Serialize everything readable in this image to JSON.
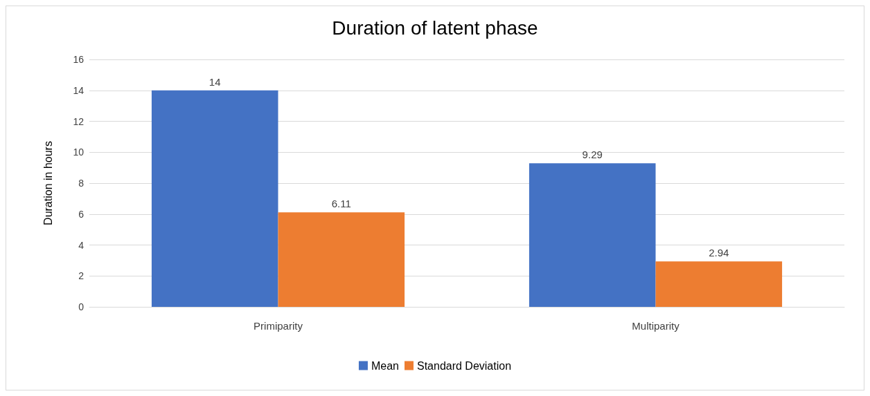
{
  "chart_data": {
    "type": "bar",
    "title": "Duration of latent phase",
    "ylabel": "Duration in hours",
    "categories": [
      "Primiparity",
      "Multiparity"
    ],
    "series": [
      {
        "name": "Mean",
        "color": "#4472c4",
        "values": [
          14,
          9.29
        ]
      },
      {
        "name": "Standard Deviation",
        "color": "#ed7d31",
        "values": [
          6.11,
          2.94
        ]
      }
    ],
    "ylim": [
      0,
      16
    ],
    "yticks": [
      0,
      2,
      4,
      6,
      8,
      10,
      12,
      14,
      16
    ],
    "grid": "y",
    "legend": "bottom",
    "data_labels": true
  }
}
